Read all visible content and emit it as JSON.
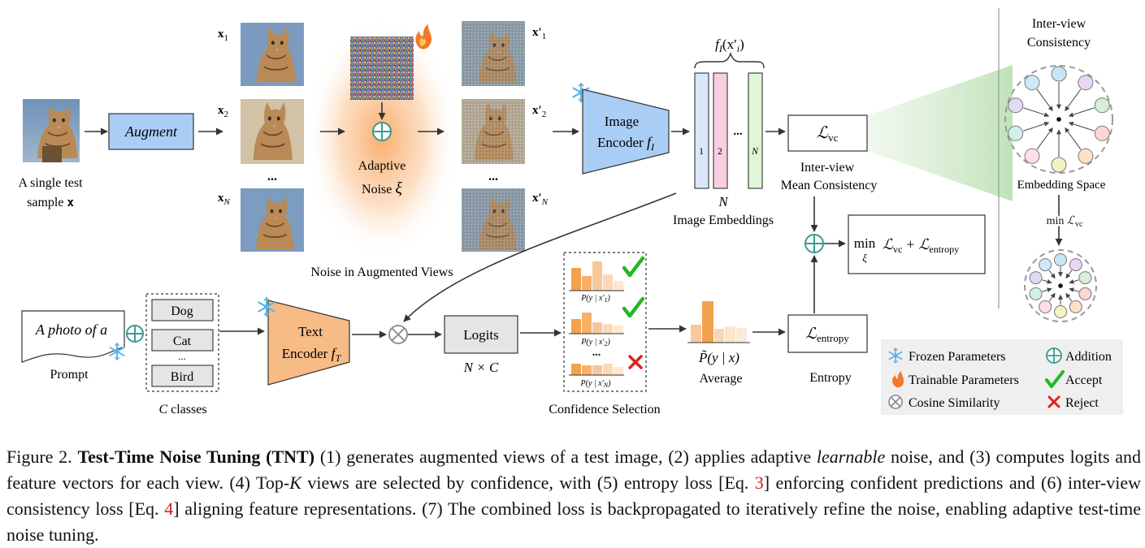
{
  "input": {
    "label_line1": "A single test",
    "label_line2": "sample",
    "label_var": "x"
  },
  "augment": {
    "label": "Augment"
  },
  "views": {
    "x1": "x",
    "x1_sub": "1",
    "x2": "x",
    "x2_sub": "2",
    "xN": "x",
    "xN_sub": "N",
    "dots": "..."
  },
  "noise": {
    "label_line1": "Adaptive",
    "label_line2": "Noise",
    "symbol": "ξ",
    "section_label": "Noise in Augmented Views"
  },
  "noisy_views": {
    "x1": "x′",
    "x1_sub": "1",
    "x2": "x′",
    "x2_sub": "2",
    "xN": "x′",
    "xN_sub": "N",
    "dots": "..."
  },
  "image_encoder": {
    "label_line1": "Image",
    "label_line2": "Encoder",
    "symbol": "f",
    "symbol_sub": "I"
  },
  "embeddings": {
    "top_label": "f",
    "top_label_sub": "I",
    "top_label_arg": "(x′",
    "top_label_arg_sub": "i",
    "top_label_close": ")",
    "bar_labels": [
      "1",
      "2",
      "N"
    ],
    "dots": "...",
    "count_label": "N",
    "label": "Image Embeddings",
    "colors": [
      "#dbe7fb",
      "#f9cfe0",
      "#dff7d6"
    ]
  },
  "loss_vc": {
    "symbol": "ℒ",
    "sub": "vc",
    "label_line1": "Inter-view",
    "label_line2": "Mean Consistency"
  },
  "objective": {
    "min": "min",
    "min_sub": "ξ",
    "term1": "ℒ",
    "term1_sub": "vc",
    "plus": "+",
    "term2": "ℒ",
    "term2_sub": "entropy"
  },
  "loss_entropy": {
    "symbol": "ℒ",
    "sub": "entropy",
    "label": "Entropy"
  },
  "prompt": {
    "text": "A photo of a",
    "label": "Prompt"
  },
  "classes": {
    "items": [
      "Dog",
      "Cat",
      "Bird"
    ],
    "dots": "...",
    "label_var": "C",
    "label_text": "classes"
  },
  "text_encoder": {
    "label_line1": "Text",
    "label_line2": "Encoder",
    "symbol": "f",
    "symbol_sub": "T"
  },
  "logits": {
    "label": "Logits",
    "dims": "N × C"
  },
  "confidence": {
    "label": "Confidence Selection",
    "histograms": [
      {
        "caption": "P(y | x′",
        "sub": "1",
        "close": ")",
        "verdict": "accept"
      },
      {
        "caption": "P(y | x′",
        "sub": "2",
        "close": ")",
        "verdict": "accept"
      },
      {
        "caption": "P(y | x′",
        "sub": "N",
        "close": ")",
        "verdict": "reject"
      }
    ],
    "dots": "..."
  },
  "average": {
    "formula": "P̃(y | x)",
    "label": "Average"
  },
  "embedding_space": {
    "title_line1": "Inter-view",
    "title_line2": "Consistency",
    "label": "Embedding Space",
    "arrow_label": "min",
    "arrow_label_sym": "ℒ",
    "arrow_label_sub": "vc",
    "dot_colors": [
      "#c9e6f7",
      "#e7d7f4",
      "#d6efd8",
      "#fbd6d3",
      "#fbe3c4",
      "#f1f3c3",
      "#fde0e6",
      "#d3efe9",
      "#e2d9f3",
      "#cfe8f8"
    ]
  },
  "legend": {
    "frozen": "Frozen Parameters",
    "trainable": "Trainable Parameters",
    "cosine": "Cosine Similarity",
    "addition": "Addition",
    "accept": "Accept",
    "reject": "Reject"
  },
  "colors": {
    "augment_fill": "#a9cdf5",
    "image_encoder_fill": "#a9cdf5",
    "text_encoder_fill": "#f7bb86",
    "noise_glow": "#fbbf86",
    "hist_orange": "#f2a24d",
    "accept_green": "#22b822",
    "reject_red": "#e02020",
    "addition_teal": "#3b9a8c",
    "frozen_blue": "#5bb5ec",
    "legend_bg": "#efefef"
  },
  "caption": {
    "fig": "Figure 2.",
    "bold_title": "Test-Time Noise Tuning (TNT)",
    "part1": "(1) generates augmented views of a test image, (2) applies adaptive",
    "italic_word": "learnable",
    "part2": "noise, and (3) computes logits and feature vectors for each view. (4) Top-",
    "k_var": "K",
    "part3": "views are selected by confidence, with (5) entropy loss [Eq.",
    "ref3": "3",
    "part4": "] enforcing confident predictions and (6) inter-view consistency loss [Eq.",
    "ref4": "4",
    "part5": "] aligning feature representations. (7) The combined loss is backpropagated to iteratively refine the noise, enabling adaptive test-time noise tuning."
  }
}
